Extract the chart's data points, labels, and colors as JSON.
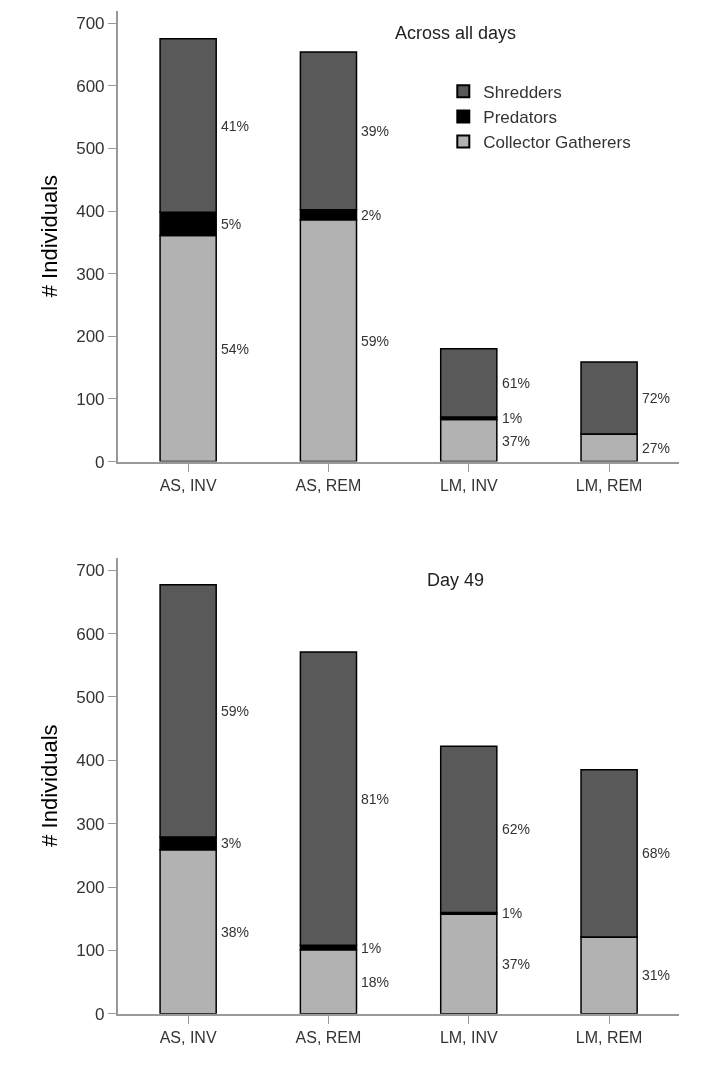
{
  "chart_data": [
    {
      "type": "bar",
      "title": "Across all days",
      "ylabel": "# Individuals",
      "stacked": true,
      "legend": "top right",
      "categories": [
        "AS, INV",
        "AS, REM",
        "LM, INV",
        "LM, REM"
      ],
      "ylim": [
        0,
        720
      ],
      "yticks": [
        0,
        100,
        200,
        300,
        400,
        500,
        600,
        700
      ],
      "series": [
        {
          "name": "Collector Gatherers",
          "color": "#b2b2b2",
          "values": [
            361,
            386,
            67,
            44
          ]
        },
        {
          "name": "Predators",
          "color": "#000000",
          "values": [
            37,
            16,
            4,
            0
          ]
        },
        {
          "name": "Shredders",
          "color": "#595959",
          "values": [
            277,
            252,
            109,
            115
          ]
        }
      ],
      "annotations": [
        "41%",
        "5%",
        "54%",
        "39%",
        "2%",
        "59%",
        "61%",
        "1%",
        "37%",
        "72%",
        "27%"
      ]
    },
    {
      "type": "bar",
      "title": "Day 49",
      "ylabel": "# Individuals",
      "stacked": true,
      "categories": [
        "AS, INV",
        "AS, REM",
        "LM, INV",
        "LM, REM"
      ],
      "ylim": [
        0,
        720
      ],
      "yticks": [
        0,
        100,
        200,
        300,
        400,
        500,
        600,
        700
      ],
      "series": [
        {
          "color": "#b2b2b2",
          "values": [
            259,
            101,
            157,
            121
          ]
        },
        {
          "color": "#000000",
          "values": [
            20,
            7,
            3,
            0
          ]
        },
        {
          "color": "#595959",
          "values": [
            398,
            463,
            262,
            264
          ]
        }
      ],
      "annotations": [
        "59%",
        "3%",
        "38%",
        "81%",
        "1%",
        "18%",
        "62%",
        "1%",
        "37%",
        "68%",
        "31%"
      ]
    }
  ]
}
